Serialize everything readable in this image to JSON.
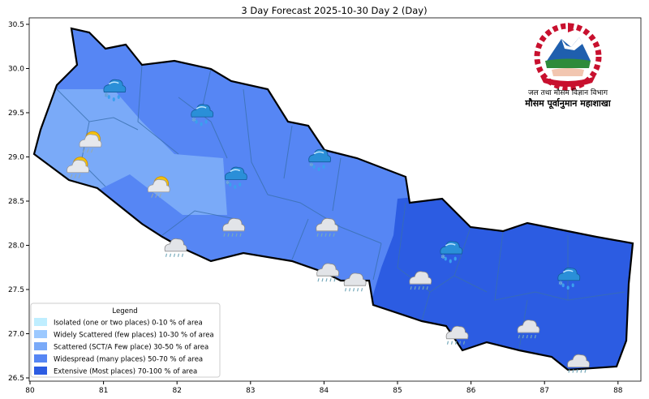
{
  "title": "3 Day Forecast 2025-10-30 Day 2 (Day)",
  "axes": {
    "x_ticks": [
      "80",
      "81",
      "82",
      "83",
      "84",
      "85",
      "86",
      "87",
      "88"
    ],
    "y_ticks": [
      "26.5",
      "27.0",
      "27.5",
      "28.0",
      "28.5",
      "29.0",
      "29.5",
      "30.0",
      "30.5"
    ],
    "xlim": [
      80,
      88.3
    ],
    "ylim": [
      26.4,
      30.55
    ]
  },
  "logo": {
    "line1": "जल तथा मौसम विज्ञान विभाग",
    "line2": "मौसम पूर्वानुमान महाशाखा"
  },
  "legend": {
    "title": "Legend",
    "items": [
      {
        "label": "Isolated (one or two places)  0-10 % of area",
        "color": "#bfeeff"
      },
      {
        "label": "Widely Scattered (few places)  10-30 % of area",
        "color": "#9cc9ff"
      },
      {
        "label": "Scattered (SCT/A Few place)  30-50 % of area",
        "color": "#7aaaf8"
      },
      {
        "label": "Widespread (many places)  50-70 % of area",
        "color": "#5686f4"
      },
      {
        "label": "Extensive (Most places)  70-100 % of area",
        "color": "#2c5ce2"
      }
    ]
  },
  "regions": [
    {
      "area": "far-west",
      "category": "Scattered (SCT/A Few place)",
      "color": "#7aaaf8"
    },
    {
      "area": "central-west",
      "category": "Widespread (many places)",
      "color": "#5686f4"
    },
    {
      "area": "east",
      "category": "Extensive (Most places)",
      "color": "#2c5ce2"
    }
  ],
  "icons": [
    {
      "type": "rain-snow-cloud",
      "lon": 81.14,
      "lat": 29.77
    },
    {
      "type": "rain-snow-cloud",
      "lon": 82.33,
      "lat": 29.49
    },
    {
      "type": "sun-cloud-rain",
      "lon": 80.81,
      "lat": 29.15
    },
    {
      "type": "sun-cloud-rain",
      "lon": 80.64,
      "lat": 28.86
    },
    {
      "type": "sun-cloud-rain",
      "lon": 81.74,
      "lat": 28.64
    },
    {
      "type": "rain-snow-cloud",
      "lon": 82.79,
      "lat": 28.78
    },
    {
      "type": "rain-snow-cloud",
      "lon": 83.93,
      "lat": 28.98
    },
    {
      "type": "grey-rain-cloud",
      "lon": 82.76,
      "lat": 28.2
    },
    {
      "type": "grey-rain-cloud",
      "lon": 84.03,
      "lat": 28.2
    },
    {
      "type": "grey-rain-cloud",
      "lon": 81.97,
      "lat": 27.97
    },
    {
      "type": "rain-snow-cloud",
      "lon": 85.72,
      "lat": 27.94
    },
    {
      "type": "rain-snow-cloud",
      "lon": 87.32,
      "lat": 27.64
    },
    {
      "type": "grey-rain-cloud",
      "lon": 84.04,
      "lat": 27.69
    },
    {
      "type": "grey-rain-cloud",
      "lon": 84.41,
      "lat": 27.58
    },
    {
      "type": "grey-rain-cloud",
      "lon": 85.3,
      "lat": 27.6
    },
    {
      "type": "grey-rain-cloud",
      "lon": 85.8,
      "lat": 26.98
    },
    {
      "type": "grey-rain-cloud",
      "lon": 86.77,
      "lat": 27.05
    },
    {
      "type": "grey-rain-cloud",
      "lon": 87.45,
      "lat": 26.66
    }
  ]
}
